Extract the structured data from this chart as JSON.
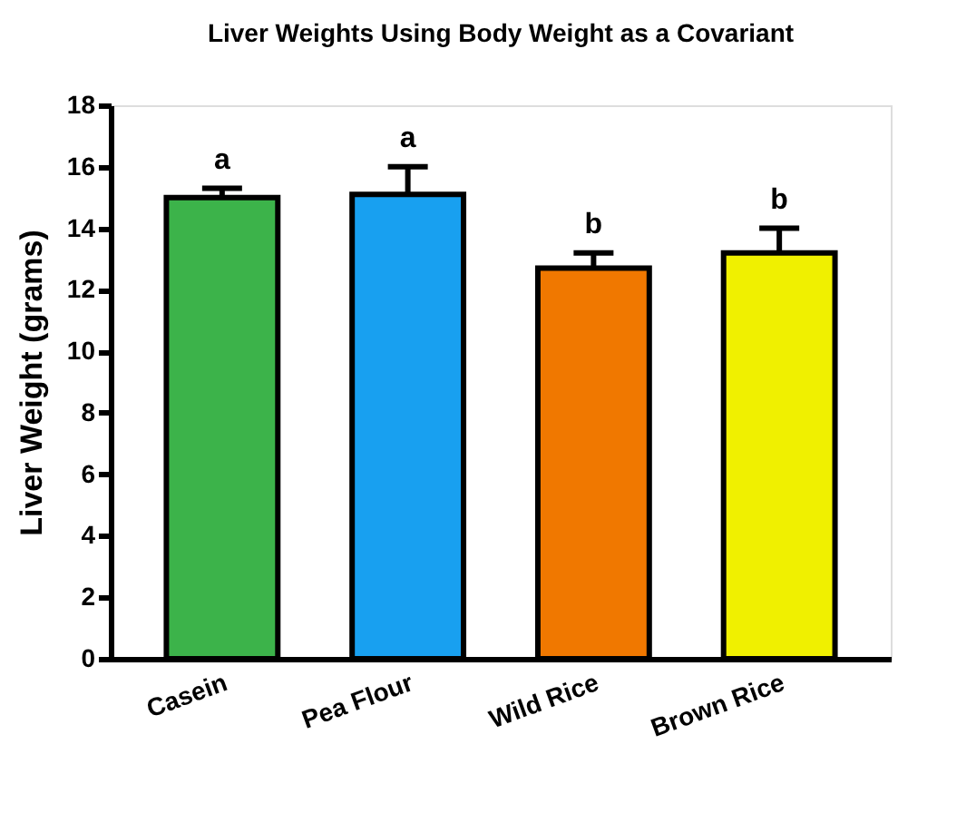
{
  "chart_data": {
    "type": "bar",
    "title": "Liver Weights Using Body Weight as a Covariant",
    "ylabel": "Liver Weight (grams)",
    "categories": [
      "Casein",
      "Pea Flour",
      "Wild Rice",
      "Brown Rice"
    ],
    "values": [
      15.0,
      15.1,
      12.7,
      13.2
    ],
    "colors": [
      "#3cb34a",
      "#18a0f0",
      "#f07800",
      "#f0f000"
    ],
    "errors": [
      [
        15.0,
        15.3
      ],
      [
        15.1,
        16.0
      ],
      [
        12.7,
        13.2
      ],
      [
        13.2,
        14.0
      ]
    ],
    "ylim": [
      0,
      18
    ],
    "yticks": [
      0,
      2,
      4,
      6,
      8,
      10,
      12,
      14,
      16,
      18
    ],
    "grid": false,
    "annotations": [
      {
        "text": "a",
        "x": "Casein",
        "y": 15.3
      },
      {
        "text": "a",
        "x": "Pea Flour",
        "y": 16.0
      },
      {
        "text": "b",
        "x": "Wild Rice",
        "y": 13.2
      },
      {
        "text": "b",
        "x": "Brown Rice",
        "y": 14.0
      }
    ]
  }
}
